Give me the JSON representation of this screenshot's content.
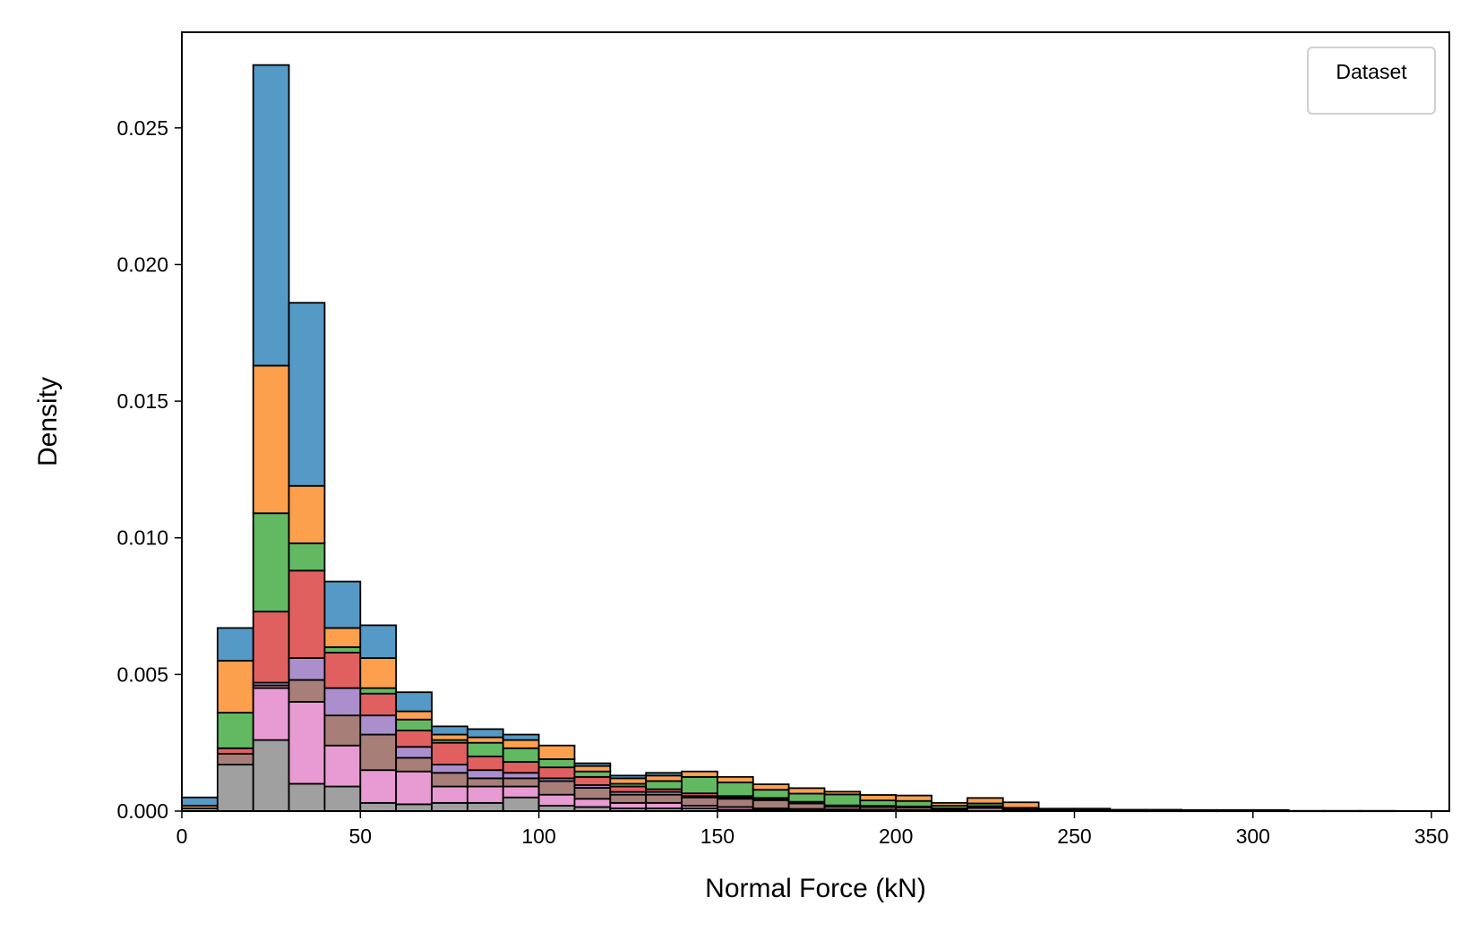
{
  "chart_data": {
    "type": "bar",
    "stacked": true,
    "title": "",
    "xlabel": "Normal Force (kN)",
    "ylabel": "Density",
    "xlim": [
      0,
      355
    ],
    "ylim": [
      0,
      0.0285
    ],
    "xticks": [
      0,
      50,
      100,
      150,
      200,
      250,
      300,
      350
    ],
    "xtick_labels": [
      "0",
      "50",
      "100",
      "150",
      "200",
      "250",
      "300",
      "350"
    ],
    "yticks": [
      0,
      0.005,
      0.01,
      0.015,
      0.02,
      0.025
    ],
    "ytick_labels": [
      "0.000",
      "0.005",
      "0.010",
      "0.015",
      "0.020",
      "0.025"
    ],
    "grid": false,
    "legend": {
      "title": "Dataset",
      "placement": "top-right",
      "entries": []
    },
    "bin_width": 10,
    "bin_starts": [
      0,
      10,
      20,
      30,
      40,
      50,
      60,
      70,
      80,
      90,
      100,
      110,
      120,
      130,
      140,
      150,
      160,
      170,
      180,
      190,
      200,
      210,
      220,
      230,
      240,
      250,
      260,
      270,
      280,
      290,
      300,
      310,
      320,
      330
    ],
    "series": [
      {
        "color": "#a0a0a0",
        "values": [
          0.0001,
          0.0017,
          0.0026,
          0.001,
          0.0009,
          0.0003,
          0.00025,
          0.0003,
          0.0003,
          0.0005,
          0.0002,
          0.00015,
          0.0001,
          0.0001,
          0.0001,
          5e-05,
          5e-05,
          3e-05,
          3e-05,
          2e-05,
          2e-05,
          1e-05,
          1e-05,
          1e-05,
          0,
          0,
          0,
          0,
          0,
          0,
          0,
          0,
          0,
          0
        ]
      },
      {
        "color": "#e89bd2",
        "values": [
          0,
          0,
          0.0019,
          0.003,
          0.0015,
          0.0012,
          0.0012,
          0.0006,
          0.0006,
          0.0004,
          0.0004,
          0.0003,
          0.0002,
          0.0002,
          0.0001,
          0.0001,
          5e-05,
          5e-05,
          3e-05,
          3e-05,
          2e-05,
          2e-05,
          0.0001,
          1e-05,
          0,
          0,
          0,
          0,
          0,
          0,
          0,
          0,
          0,
          0
        ]
      },
      {
        "color": "#a77f78",
        "values": [
          0,
          0.0004,
          0.0001,
          0.0008,
          0.0011,
          0.0013,
          0.0005,
          0.0005,
          0.0003,
          0.0003,
          0.0005,
          0.0004,
          0.0003,
          0.0003,
          0.0003,
          0.0003,
          0.0003,
          0.0002,
          0.0001,
          0.0001,
          0.0001,
          5e-05,
          5e-05,
          3e-05,
          2e-05,
          2e-05,
          1e-05,
          1e-05,
          1e-05,
          1e-05,
          1e-05,
          0,
          0,
          0
        ]
      },
      {
        "color": "#ab8fcc",
        "values": [
          0,
          0,
          0.0001,
          0.0008,
          0.001,
          0.0007,
          0.0004,
          0.0003,
          0.0003,
          0.0002,
          0.0001,
          0.0001,
          0.0001,
          0.0001,
          5e-05,
          5e-05,
          3e-05,
          3e-05,
          2e-05,
          2e-05,
          1e-05,
          1e-05,
          1e-05,
          1e-05,
          0,
          0,
          0,
          0,
          0,
          0,
          0,
          0,
          0,
          0
        ]
      },
      {
        "color": "#e06060",
        "values": [
          0,
          0.0002,
          0.0026,
          0.0032,
          0.0013,
          0.0008,
          0.0006,
          0.0008,
          0.0005,
          0.0004,
          0.0004,
          0.0003,
          0.0002,
          0.0001,
          0.0001,
          5e-05,
          5e-05,
          3e-05,
          3e-05,
          2e-05,
          2e-05,
          1e-05,
          1e-05,
          1e-05,
          0,
          0,
          0,
          0,
          0,
          0,
          0,
          0,
          0,
          0
        ]
      },
      {
        "color": "#62b962",
        "values": [
          0,
          0.0013,
          0.0036,
          0.001,
          0.0002,
          0.0002,
          0.0004,
          0.0001,
          0.0005,
          0.0005,
          0.0003,
          0.0002,
          0.0001,
          0.0003,
          0.0006,
          0.0005,
          0.0003,
          0.0003,
          0.0004,
          0.0002,
          0.0002,
          0.0001,
          0.0001,
          5e-05,
          2e-05,
          2e-05,
          1e-05,
          1e-05,
          1e-05,
          1e-05,
          1e-05,
          0,
          0,
          0
        ]
      },
      {
        "color": "#fda04e",
        "values": [
          0.0001,
          0.0019,
          0.0054,
          0.0021,
          0.0007,
          0.0011,
          0.0003,
          0.0002,
          0.0002,
          0.0003,
          0.0005,
          0.0002,
          0.0002,
          0.0002,
          0.0002,
          0.0002,
          0.0002,
          0.0002,
          0.0001,
          0.0002,
          0.0002,
          0.0001,
          0.0002,
          0.0002,
          5e-05,
          5e-05,
          3e-05,
          3e-05,
          2e-05,
          2e-05,
          2e-05,
          1e-05,
          1e-05,
          1e-05
        ]
      },
      {
        "color": "#5599c7",
        "values": [
          0.0003,
          0.0012,
          0.011,
          0.0067,
          0.0017,
          0.0012,
          0.0007,
          0.0003,
          0.0003,
          0.0002,
          0,
          0.0001,
          0.0001,
          0.0001,
          0,
          0,
          0,
          0,
          0,
          0,
          0,
          0,
          0,
          0,
          0,
          0,
          0,
          0,
          0,
          0,
          0,
          0,
          0,
          0
        ]
      }
    ]
  }
}
